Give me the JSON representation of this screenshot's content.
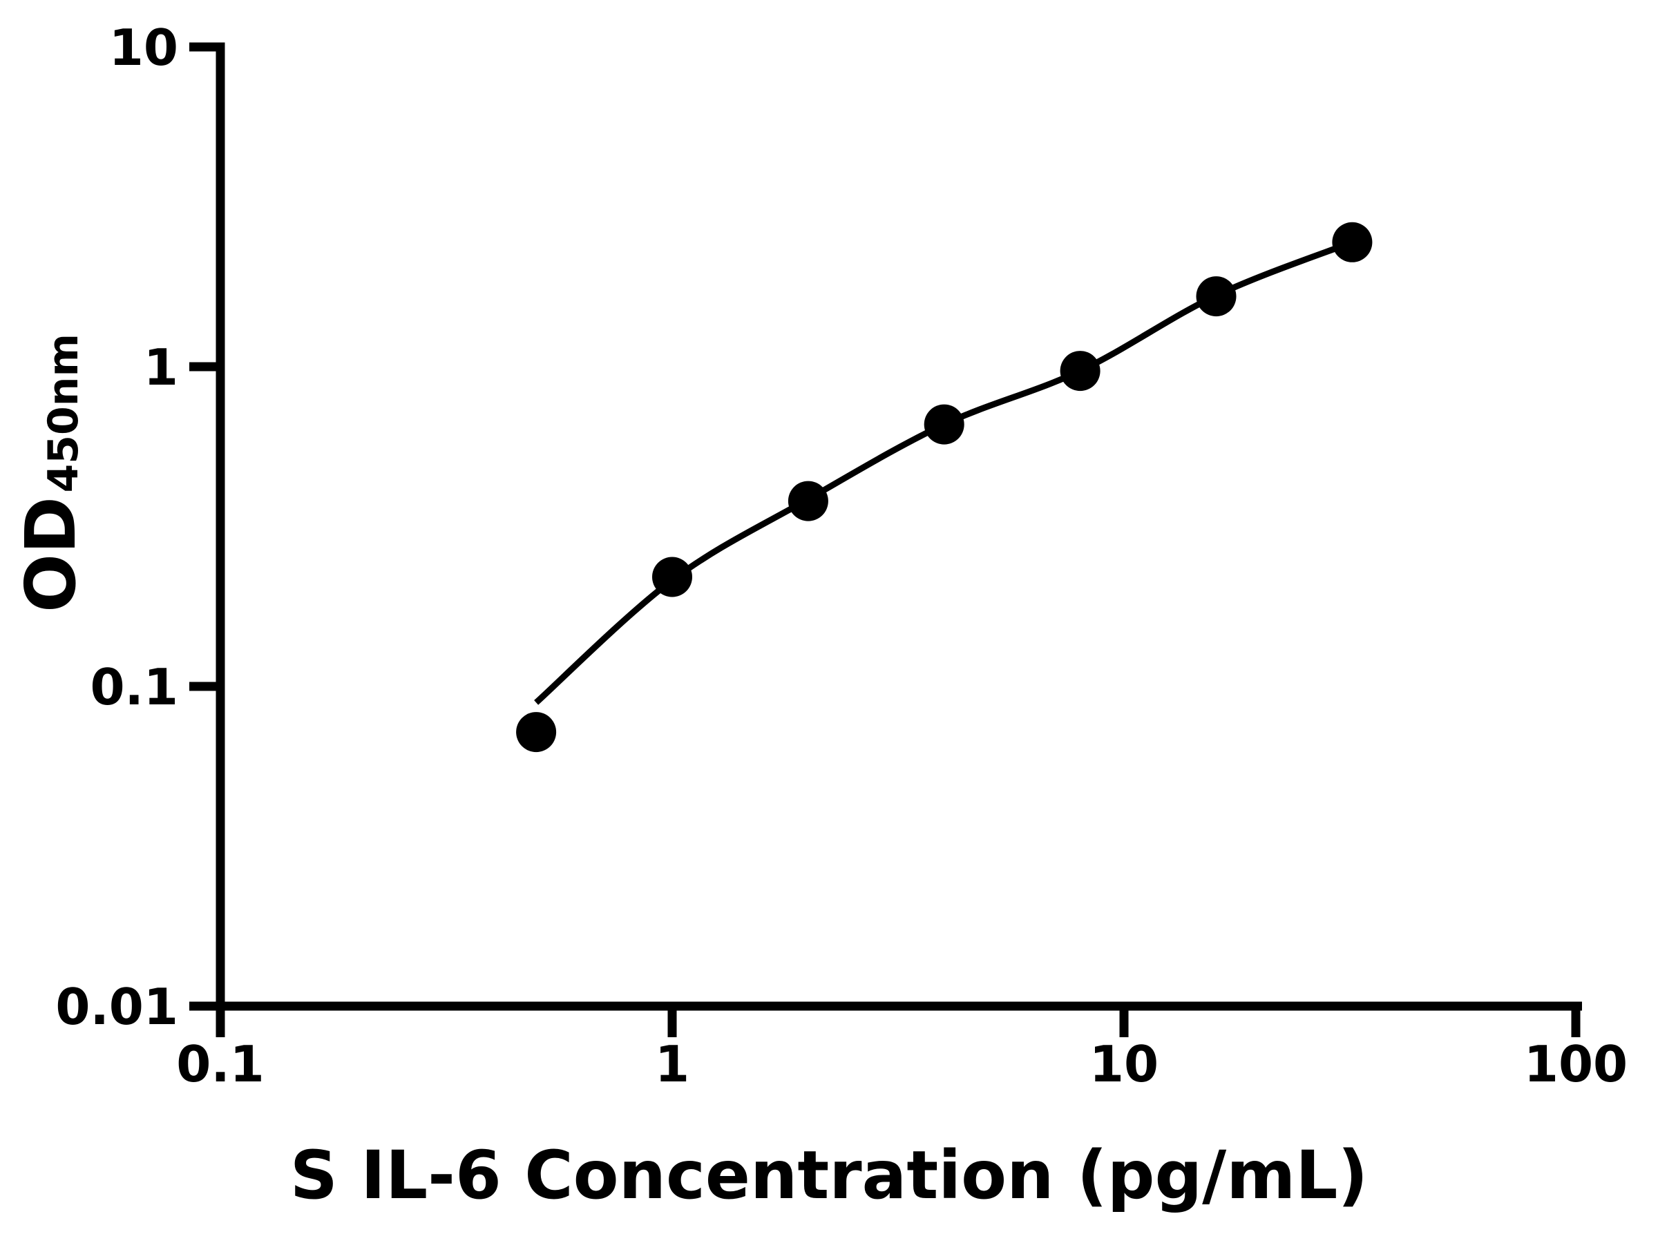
{
  "figure": {
    "background_color": "#ffffff",
    "ink_color": "#000000"
  },
  "chart_data": {
    "type": "scatter",
    "title": "",
    "xlabel": "S IL-6 Concentration (pg/mL)",
    "ylabel_main": "OD",
    "ylabel_subscript": "450nm",
    "x_scale": "log",
    "y_scale": "log",
    "xlim": [
      0.1,
      100
    ],
    "ylim": [
      0.01,
      10
    ],
    "x_ticks": [
      0.1,
      1,
      10,
      100
    ],
    "x_tick_labels": [
      "0.1",
      "1",
      "10",
      "100"
    ],
    "y_ticks": [
      0.01,
      0.1,
      1,
      10
    ],
    "y_tick_labels": [
      "0.01",
      "0.1",
      "1",
      "10"
    ],
    "grid": false,
    "legend": null,
    "series": [
      {
        "name": "standard-points",
        "type": "scatter",
        "marker": "circle",
        "color": "#000000",
        "x": [
          0.5,
          1,
          2,
          4,
          8,
          16,
          32
        ],
        "y": [
          0.072,
          0.22,
          0.38,
          0.66,
          0.97,
          1.66,
          2.45
        ]
      },
      {
        "name": "fitted-curve",
        "type": "line",
        "color": "#000000",
        "x": [
          0.5,
          1,
          2,
          4,
          8,
          16,
          32
        ],
        "y": [
          0.089,
          0.215,
          0.385,
          0.66,
          0.97,
          1.67,
          2.45
        ]
      }
    ]
  }
}
